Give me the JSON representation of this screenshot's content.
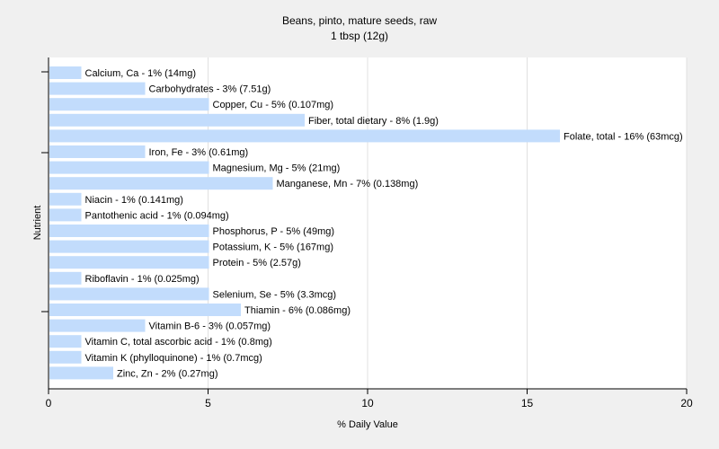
{
  "chart_data": {
    "type": "bar",
    "orientation": "horizontal",
    "title": "Beans, pinto, mature seeds, raw",
    "subtitle": "1 tbsp (12g)",
    "xlabel": "% Daily Value",
    "ylabel": "Nutrient",
    "xlim": [
      0,
      20
    ],
    "xticks": [
      0,
      5,
      10,
      15,
      20
    ],
    "grid": true,
    "bar_color": "#c2dcfc",
    "categories": [
      "Calcium, Ca",
      "Carbohydrates",
      "Copper, Cu",
      "Fiber, total dietary",
      "Folate, total",
      "Iron, Fe",
      "Magnesium, Mg",
      "Manganese, Mn",
      "Niacin",
      "Pantothenic acid",
      "Phosphorus, P",
      "Potassium, K",
      "Protein",
      "Riboflavin",
      "Selenium, Se",
      "Thiamin",
      "Vitamin B-6",
      "Vitamin C, total ascorbic acid",
      "Vitamin K (phylloquinone)",
      "Zinc, Zn"
    ],
    "values": [
      1,
      3,
      5,
      8,
      16,
      3,
      5,
      7,
      1,
      1,
      5,
      5,
      5,
      1,
      5,
      6,
      3,
      1,
      1,
      2
    ],
    "labels": [
      "Calcium, Ca - 1% (14mg)",
      "Carbohydrates - 3% (7.51g)",
      "Copper, Cu - 5% (0.107mg)",
      "Fiber, total dietary - 8% (1.9g)",
      "Folate, total - 16% (63mcg)",
      "Iron, Fe - 3% (0.61mg)",
      "Magnesium, Mg - 5% (21mg)",
      "Manganese, Mn - 7% (0.138mg)",
      "Niacin - 1% (0.141mg)",
      "Pantothenic acid - 1% (0.094mg)",
      "Phosphorus, P - 5% (49mg)",
      "Potassium, K - 5% (167mg)",
      "Protein - 5% (2.57g)",
      "Riboflavin - 1% (0.025mg)",
      "Selenium, Se - 5% (3.3mcg)",
      "Thiamin - 6% (0.086mg)",
      "Vitamin B-6 - 3% (0.057mg)",
      "Vitamin C, total ascorbic acid - 1% (0.8mg)",
      "Vitamin K (phylloquinone) - 1% (0.7mcg)",
      "Zinc, Zn - 2% (0.27mg)"
    ]
  }
}
